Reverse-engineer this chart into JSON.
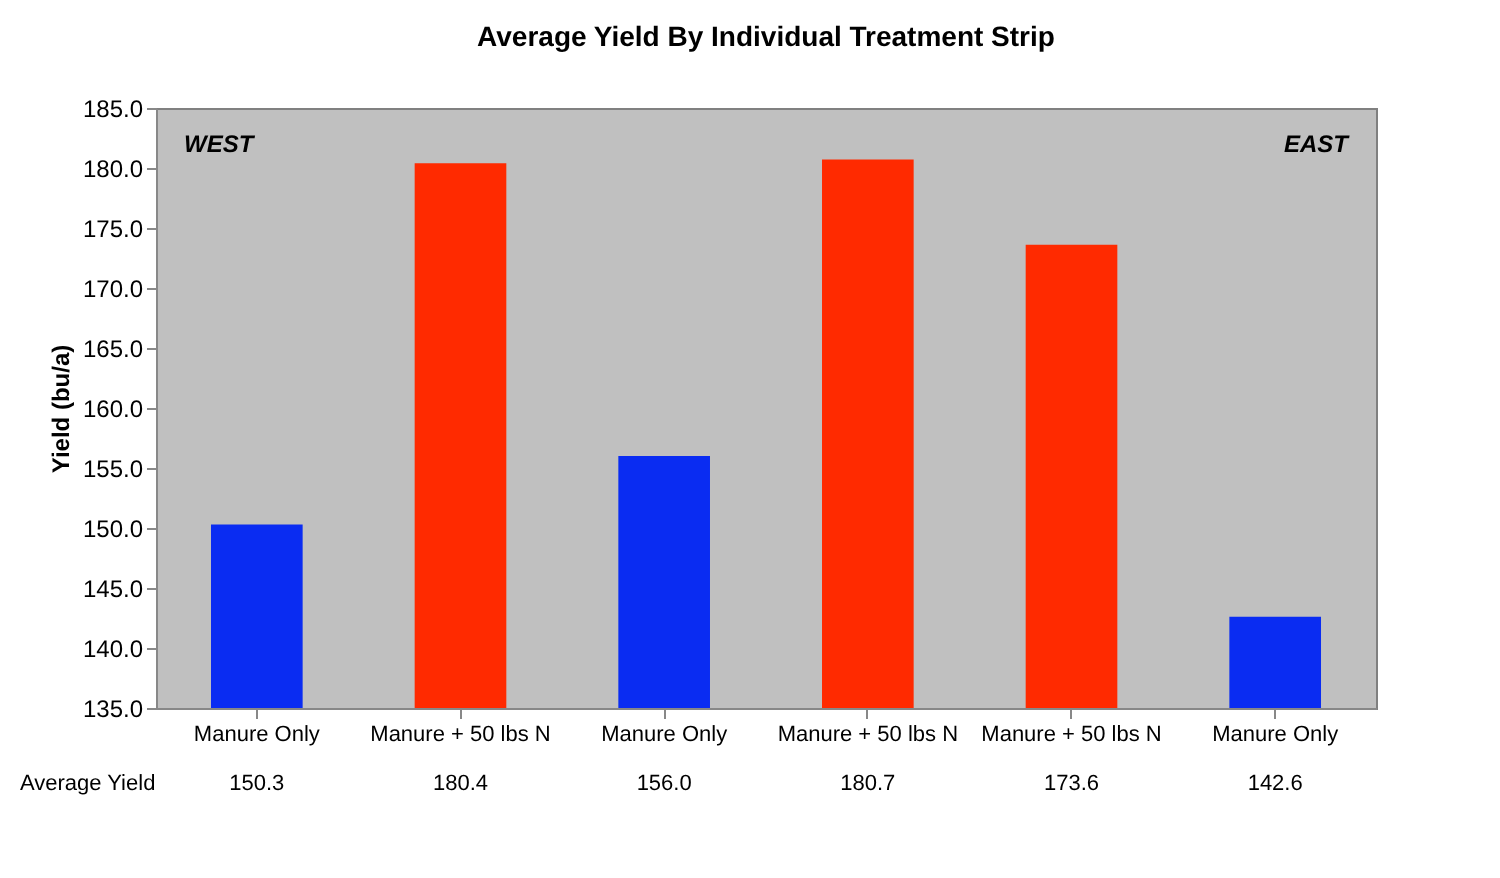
{
  "chart_data": {
    "type": "bar",
    "title": "Average Yield By Individual Treatment Strip",
    "ylabel": "Yield (bu/a)",
    "categories": [
      "Manure Only",
      "Manure + 50 lbs N",
      "Manure Only",
      "Manure + 50 lbs N",
      "Manure + 50 lbs N",
      "Manure Only"
    ],
    "values": [
      150.3,
      180.4,
      156.0,
      180.7,
      173.6,
      142.6
    ],
    "value_labels": [
      "150.3",
      "180.4",
      "156.0",
      "180.7",
      "173.6",
      "142.6"
    ],
    "colors": [
      "#0a2cf2",
      "#ff2a00",
      "#0a2cf2",
      "#ff2a00",
      "#ff2a00",
      "#0a2cf2"
    ],
    "ylim": [
      135,
      185
    ],
    "yticks": [
      {
        "value": 135,
        "label": "135.0"
      },
      {
        "value": 140,
        "label": "140.0"
      },
      {
        "value": 145,
        "label": "145.0"
      },
      {
        "value": 150,
        "label": "150.0"
      },
      {
        "value": 155,
        "label": "155.0"
      },
      {
        "value": 160,
        "label": "160.0"
      },
      {
        "value": 165,
        "label": "165.0"
      },
      {
        "value": 170,
        "label": "170.0"
      },
      {
        "value": 175,
        "label": "175.0"
      },
      {
        "value": 180,
        "label": "180.0"
      },
      {
        "value": 185,
        "label": "185.0"
      }
    ],
    "annotations": [
      "WEST",
      "EAST",
      "Average Yield"
    ],
    "grid": false
  }
}
